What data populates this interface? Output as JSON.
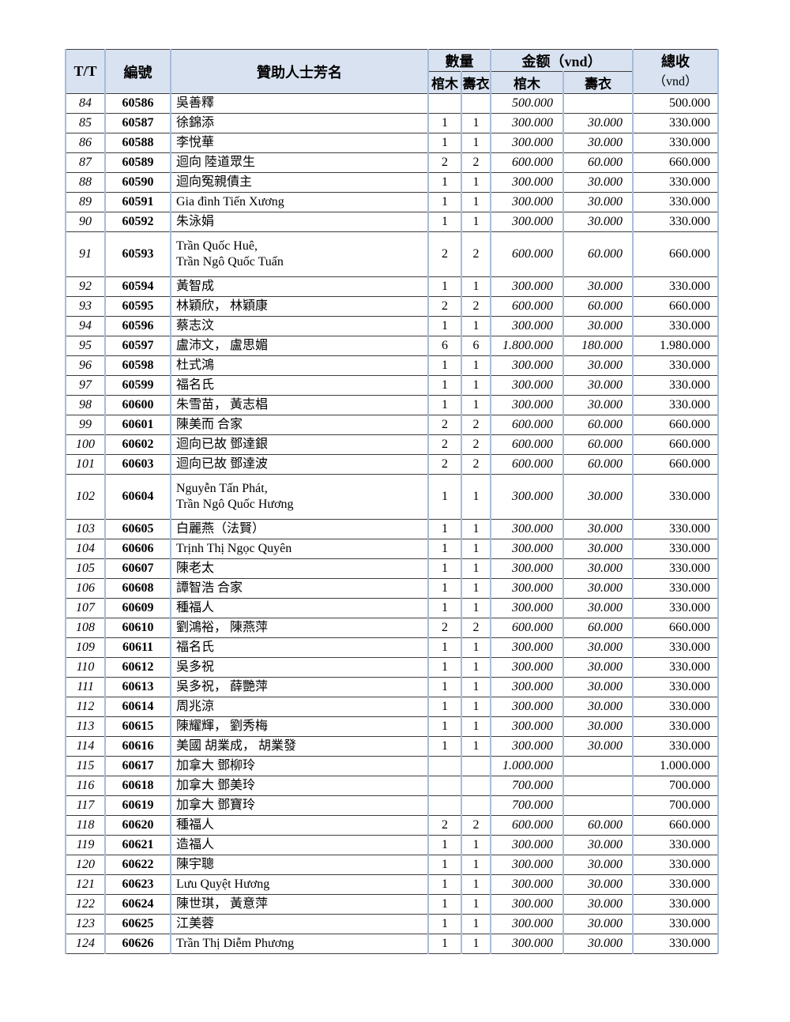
{
  "colors": {
    "header_bg": "#d9e2f0",
    "grid_vertical": "#a8bcd8",
    "grid_horizontal": "#3d3d3d",
    "page_background": "#ffffff"
  },
  "table": {
    "headers": {
      "tt": "T/T",
      "id": "編號",
      "name": "贊助人士芳名",
      "qty_group": "數量",
      "amount_group": "金额（vnd）",
      "qty_coffin": "棺木",
      "qty_shroud": "壽衣",
      "amt_coffin": "棺木",
      "amt_shroud": "壽衣",
      "total_line1": "總收",
      "total_line2": "（vnd）"
    },
    "rows": [
      {
        "tt": "84",
        "id": "60586",
        "name": "吳善釋",
        "cm": "",
        "sy": "",
        "cm_amt": "500.000",
        "sy_amt": "",
        "total": "500.000"
      },
      {
        "tt": "85",
        "id": "60587",
        "name": "徐錦添",
        "cm": "1",
        "sy": "1",
        "cm_amt": "300.000",
        "sy_amt": "30.000",
        "total": "330.000"
      },
      {
        "tt": "86",
        "id": "60588",
        "name": "李悅華",
        "cm": "1",
        "sy": "1",
        "cm_amt": "300.000",
        "sy_amt": "30.000",
        "total": "330.000"
      },
      {
        "tt": "87",
        "id": "60589",
        "name": "迴向 陸道眾生",
        "cm": "2",
        "sy": "2",
        "cm_amt": "600.000",
        "sy_amt": "60.000",
        "total": "660.000"
      },
      {
        "tt": "88",
        "id": "60590",
        "name": "迴向冤親債主",
        "cm": "1",
        "sy": "1",
        "cm_amt": "300.000",
        "sy_amt": "30.000",
        "total": "330.000"
      },
      {
        "tt": "89",
        "id": "60591",
        "name": "Gia đình Tiến Xương",
        "cm": "1",
        "sy": "1",
        "cm_amt": "300.000",
        "sy_amt": "30.000",
        "total": "330.000"
      },
      {
        "tt": "90",
        "id": "60592",
        "name": "朱泳娟",
        "cm": "1",
        "sy": "1",
        "cm_amt": "300.000",
        "sy_amt": "30.000",
        "total": "330.000"
      },
      {
        "tt": "91",
        "id": "60593",
        "name": "Trần Quốc Huê,",
        "name2": "Trần Ngô Quốc Tuấn",
        "cm": "2",
        "sy": "2",
        "cm_amt": "600.000",
        "sy_amt": "60.000",
        "total": "660.000"
      },
      {
        "tt": "92",
        "id": "60594",
        "name": "黃智成",
        "cm": "1",
        "sy": "1",
        "cm_amt": "300.000",
        "sy_amt": "30.000",
        "total": "330.000"
      },
      {
        "tt": "93",
        "id": "60595",
        "name": "林穎欣， 林穎康",
        "cm": "2",
        "sy": "2",
        "cm_amt": "600.000",
        "sy_amt": "60.000",
        "total": "660.000"
      },
      {
        "tt": "94",
        "id": "60596",
        "name": "蔡志汶",
        "cm": "1",
        "sy": "1",
        "cm_amt": "300.000",
        "sy_amt": "30.000",
        "total": "330.000"
      },
      {
        "tt": "95",
        "id": "60597",
        "name": "盧沛文， 盧思媚",
        "cm": "6",
        "sy": "6",
        "cm_amt": "1.800.000",
        "sy_amt": "180.000",
        "total": "1.980.000"
      },
      {
        "tt": "96",
        "id": "60598",
        "name": "杜式鴻",
        "cm": "1",
        "sy": "1",
        "cm_amt": "300.000",
        "sy_amt": "30.000",
        "total": "330.000"
      },
      {
        "tt": "97",
        "id": "60599",
        "name": "福名氏",
        "cm": "1",
        "sy": "1",
        "cm_amt": "300.000",
        "sy_amt": "30.000",
        "total": "330.000"
      },
      {
        "tt": "98",
        "id": "60600",
        "name": "朱雪苗， 黃志椙",
        "cm": "1",
        "sy": "1",
        "cm_amt": "300.000",
        "sy_amt": "30.000",
        "total": "330.000"
      },
      {
        "tt": "99",
        "id": "60601",
        "name": "陳美而 合家",
        "cm": "2",
        "sy": "2",
        "cm_amt": "600.000",
        "sy_amt": "60.000",
        "total": "660.000"
      },
      {
        "tt": "100",
        "id": "60602",
        "name": "迴向已故 鄧達銀",
        "cm": "2",
        "sy": "2",
        "cm_amt": "600.000",
        "sy_amt": "60.000",
        "total": "660.000"
      },
      {
        "tt": "101",
        "id": "60603",
        "name": "迴向已故 鄧達波",
        "cm": "2",
        "sy": "2",
        "cm_amt": "600.000",
        "sy_amt": "60.000",
        "total": "660.000"
      },
      {
        "tt": "102",
        "id": "60604",
        "name": "Nguyễn Tấn Phát,",
        "name2": "Trần Ngô Quốc Hương",
        "cm": "1",
        "sy": "1",
        "cm_amt": "300.000",
        "sy_amt": "30.000",
        "total": "330.000"
      },
      {
        "tt": "103",
        "id": "60605",
        "name": "白麗燕（法賢）",
        "cm": "1",
        "sy": "1",
        "cm_amt": "300.000",
        "sy_amt": "30.000",
        "total": "330.000"
      },
      {
        "tt": "104",
        "id": "60606",
        "name": "Trịnh Thị Ngọc Quyên",
        "cm": "1",
        "sy": "1",
        "cm_amt": "300.000",
        "sy_amt": "30.000",
        "total": "330.000"
      },
      {
        "tt": "105",
        "id": "60607",
        "name": "陳老太",
        "cm": "1",
        "sy": "1",
        "cm_amt": "300.000",
        "sy_amt": "30.000",
        "total": "330.000"
      },
      {
        "tt": "106",
        "id": "60608",
        "name": "譚智浩 合家",
        "cm": "1",
        "sy": "1",
        "cm_amt": "300.000",
        "sy_amt": "30.000",
        "total": "330.000"
      },
      {
        "tt": "107",
        "id": "60609",
        "name": "種福人",
        "cm": "1",
        "sy": "1",
        "cm_amt": "300.000",
        "sy_amt": "30.000",
        "total": "330.000"
      },
      {
        "tt": "108",
        "id": "60610",
        "name": "劉鴻裕， 陳燕萍",
        "cm": "2",
        "sy": "2",
        "cm_amt": "600.000",
        "sy_amt": "60.000",
        "total": "660.000"
      },
      {
        "tt": "109",
        "id": "60611",
        "name": "福名氏",
        "cm": "1",
        "sy": "1",
        "cm_amt": "300.000",
        "sy_amt": "30.000",
        "total": "330.000"
      },
      {
        "tt": "110",
        "id": "60612",
        "name": "吳多祝",
        "cm": "1",
        "sy": "1",
        "cm_amt": "300.000",
        "sy_amt": "30.000",
        "total": "330.000"
      },
      {
        "tt": "111",
        "id": "60613",
        "name": "吳多祝， 薛艷萍",
        "cm": "1",
        "sy": "1",
        "cm_amt": "300.000",
        "sy_amt": "30.000",
        "total": "330.000"
      },
      {
        "tt": "112",
        "id": "60614",
        "name": "周兆涼",
        "cm": "1",
        "sy": "1",
        "cm_amt": "300.000",
        "sy_amt": "30.000",
        "total": "330.000"
      },
      {
        "tt": "113",
        "id": "60615",
        "name": "陳耀輝， 劉秀梅",
        "cm": "1",
        "sy": "1",
        "cm_amt": "300.000",
        "sy_amt": "30.000",
        "total": "330.000"
      },
      {
        "tt": "114",
        "id": "60616",
        "name": "美國 胡業成， 胡業發",
        "cm": "1",
        "sy": "1",
        "cm_amt": "300.000",
        "sy_amt": "30.000",
        "total": "330.000"
      },
      {
        "tt": "115",
        "id": "60617",
        "name": "加拿大 鄧柳玲",
        "cm": "",
        "sy": "",
        "cm_amt": "1.000.000",
        "sy_amt": "",
        "total": "1.000.000"
      },
      {
        "tt": "116",
        "id": "60618",
        "name": "加拿大 鄧美玲",
        "cm": "",
        "sy": "",
        "cm_amt": "700.000",
        "sy_amt": "",
        "total": "700.000"
      },
      {
        "tt": "117",
        "id": "60619",
        "name": "加拿大 鄧寶玲",
        "cm": "",
        "sy": "",
        "cm_amt": "700.000",
        "sy_amt": "",
        "total": "700.000"
      },
      {
        "tt": "118",
        "id": "60620",
        "name": "種福人",
        "cm": "2",
        "sy": "2",
        "cm_amt": "600.000",
        "sy_amt": "60.000",
        "total": "660.000"
      },
      {
        "tt": "119",
        "id": "60621",
        "name": "造福人",
        "cm": "1",
        "sy": "1",
        "cm_amt": "300.000",
        "sy_amt": "30.000",
        "total": "330.000"
      },
      {
        "tt": "120",
        "id": "60622",
        "name": "陳宇聰",
        "cm": "1",
        "sy": "1",
        "cm_amt": "300.000",
        "sy_amt": "30.000",
        "total": "330.000"
      },
      {
        "tt": "121",
        "id": "60623",
        "name": "Lưu Quyệt Hương",
        "cm": "1",
        "sy": "1",
        "cm_amt": "300.000",
        "sy_amt": "30.000",
        "total": "330.000"
      },
      {
        "tt": "122",
        "id": "60624",
        "name": "陳世琪， 黃意萍",
        "cm": "1",
        "sy": "1",
        "cm_amt": "300.000",
        "sy_amt": "30.000",
        "total": "330.000"
      },
      {
        "tt": "123",
        "id": "60625",
        "name": "江美蓉",
        "cm": "1",
        "sy": "1",
        "cm_amt": "300.000",
        "sy_amt": "30.000",
        "total": "330.000"
      },
      {
        "tt": "124",
        "id": "60626",
        "name": "Trần Thị Diễm Phương",
        "cm": "1",
        "sy": "1",
        "cm_amt": "300.000",
        "sy_amt": "30.000",
        "total": "330.000"
      }
    ]
  }
}
